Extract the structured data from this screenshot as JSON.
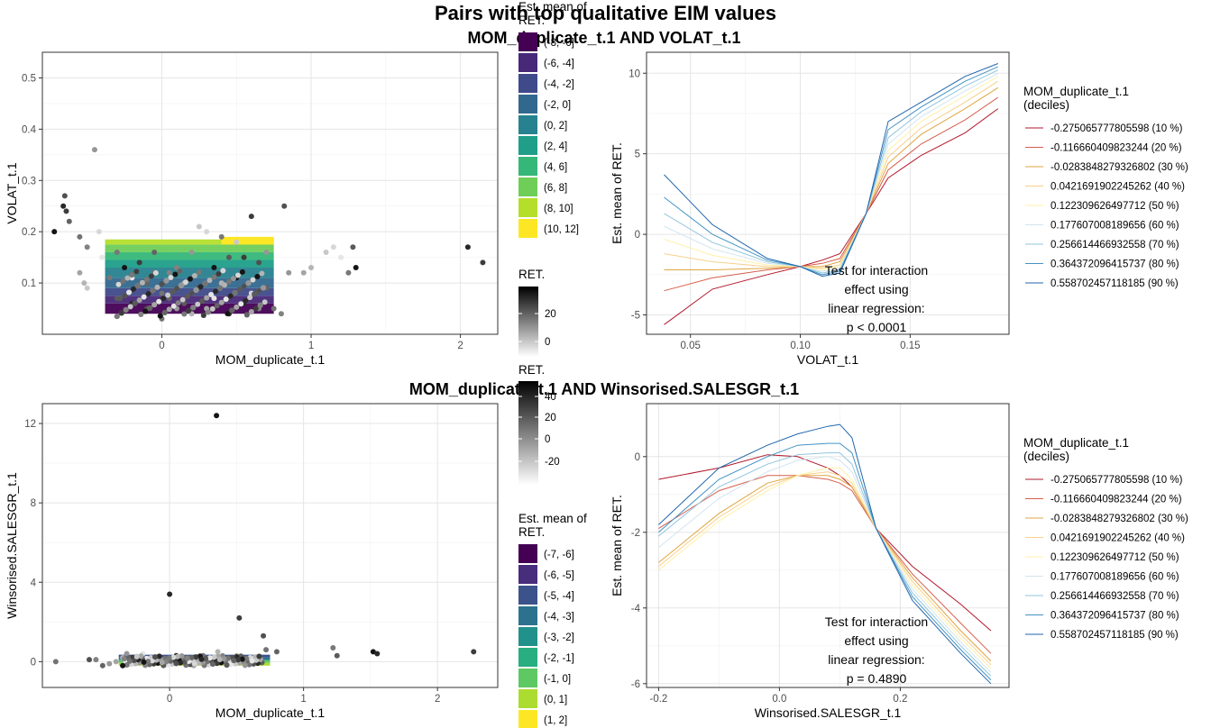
{
  "title": "Pairs with top qualitative EIM values",
  "chart_data": [
    {
      "id": "scatter_top",
      "type": "scatter",
      "title": "MOM_duplicate_t.1 AND VOLAT_t.1",
      "xlabel": "MOM_duplicate_t.1",
      "ylabel": "VOLAT_t.1",
      "xlim": [
        -0.8,
        2.25
      ],
      "ylim": [
        0.0,
        0.55
      ],
      "xticks": [
        0,
        1,
        2
      ],
      "yticks": [
        0.1,
        0.2,
        0.3,
        0.4,
        0.5
      ],
      "ytick_labels": [
        "0.1",
        "0.2",
        "0.3",
        "0.4",
        "0.5"
      ],
      "grid": true,
      "fill_legend": {
        "title": "Est. mean of RET.",
        "items": [
          "(-8, -6]",
          "(-6, -4]",
          "(-4, -2]",
          "(-2, 0]",
          "(0, 2]",
          "(2, 4]",
          "(4, 6]",
          "(6, 8]",
          "(8, 10]",
          "(10, 12]"
        ],
        "colors": [
          "#440154",
          "#482878",
          "#3e4a89",
          "#31688e",
          "#26828e",
          "#1f9e89",
          "#35b779",
          "#6ece58",
          "#b5de2b",
          "#fde725"
        ]
      },
      "color_legend": {
        "title": "RET.",
        "ticks": [
          "20",
          "0"
        ]
      },
      "region_bands": [
        {
          "y": [
            0.04,
            0.06
          ],
          "level": 0
        },
        {
          "y": [
            0.06,
            0.075
          ],
          "level": 1
        },
        {
          "y": [
            0.075,
            0.09
          ],
          "level": 2
        },
        {
          "y": [
            0.09,
            0.11
          ],
          "level": 3
        },
        {
          "y": [
            0.11,
            0.13
          ],
          "level": 4
        },
        {
          "y": [
            0.13,
            0.145
          ],
          "level": 5
        },
        {
          "y": [
            0.145,
            0.16
          ],
          "level": 6
        },
        {
          "y": [
            0.16,
            0.175
          ],
          "level": 7
        },
        {
          "y": [
            0.175,
            0.185
          ],
          "level": 8
        }
      ],
      "region_x": [
        -0.38,
        0.75
      ],
      "points": [
        [
          -0.72,
          0.2
        ],
        [
          -0.66,
          0.25
        ],
        [
          -0.64,
          0.24
        ],
        [
          -0.65,
          0.27
        ],
        [
          -0.62,
          0.22
        ],
        [
          -0.55,
          0.19
        ],
        [
          -0.5,
          0.17
        ],
        [
          -0.45,
          0.36
        ],
        [
          -0.55,
          0.12
        ],
        [
          -0.52,
          0.1
        ],
        [
          -0.5,
          0.09
        ],
        [
          -0.42,
          0.2
        ],
        [
          -0.4,
          0.15
        ],
        [
          -0.35,
          0.11
        ],
        [
          -0.3,
          0.07
        ],
        [
          -0.25,
          0.13
        ],
        [
          -0.2,
          0.06
        ],
        [
          -0.15,
          0.14
        ],
        [
          -0.1,
          0.05
        ],
        [
          -0.05,
          0.16
        ],
        [
          0.0,
          0.08
        ],
        [
          0.05,
          0.12
        ],
        [
          0.1,
          0.05
        ],
        [
          0.15,
          0.1
        ],
        [
          0.2,
          0.04
        ],
        [
          0.25,
          0.21
        ],
        [
          0.3,
          0.2
        ],
        [
          0.35,
          0.07
        ],
        [
          0.4,
          0.19
        ],
        [
          0.45,
          0.15
        ],
        [
          0.5,
          0.11
        ],
        [
          0.55,
          0.06
        ],
        [
          0.6,
          0.23
        ],
        [
          0.65,
          0.14
        ],
        [
          0.7,
          0.09
        ],
        [
          0.75,
          0.05
        ],
        [
          0.8,
          0.04
        ],
        [
          0.85,
          0.12
        ],
        [
          0.95,
          0.12
        ],
        [
          1.0,
          0.13
        ],
        [
          1.1,
          0.16
        ],
        [
          1.15,
          0.17
        ],
        [
          1.2,
          0.15
        ],
        [
          1.25,
          0.12
        ],
        [
          1.28,
          0.17
        ],
        [
          1.3,
          0.13
        ],
        [
          2.05,
          0.17
        ],
        [
          2.15,
          0.14
        ],
        [
          0.82,
          0.25
        ],
        [
          -0.1,
          0.1
        ],
        [
          0.0,
          0.03
        ],
        [
          0.1,
          0.13
        ],
        [
          0.2,
          0.16
        ],
        [
          0.3,
          0.05
        ],
        [
          0.4,
          0.1
        ],
        [
          0.5,
          0.18
        ],
        [
          0.6,
          0.08
        ],
        [
          -0.2,
          0.11
        ],
        [
          -0.3,
          0.16
        ],
        [
          0.15,
          0.06
        ],
        [
          0.35,
          0.13
        ],
        [
          0.45,
          0.04
        ],
        [
          0.55,
          0.15
        ],
        [
          0.25,
          0.09
        ],
        [
          0.05,
          0.07
        ],
        [
          -0.05,
          0.12
        ],
        [
          0.65,
          0.05
        ],
        [
          0.7,
          0.16
        ]
      ]
    },
    {
      "id": "lines_top",
      "type": "line",
      "xlabel": "VOLAT_t.1",
      "ylabel": "Est. mean of RET.",
      "xlim": [
        0.03,
        0.195
      ],
      "ylim": [
        -6.2,
        11.3
      ],
      "xticks": [
        0.05,
        0.1,
        0.15
      ],
      "xtick_labels": [
        "0.05",
        "0.10",
        "0.15"
      ],
      "yticks": [
        -5,
        0,
        5,
        10
      ],
      "grid": true,
      "x": [
        0.038,
        0.06,
        0.085,
        0.1,
        0.11,
        0.118,
        0.13,
        0.14,
        0.155,
        0.175,
        0.19
      ],
      "legend_title": "MOM_duplicate_t.1 (deciles)",
      "series": [
        {
          "name": "-0.275065777805598 (10 %)",
          "color": "#b2182b",
          "values": [
            -5.6,
            -3.4,
            -2.5,
            -2.0,
            -1.6,
            -1.2,
            1.3,
            3.5,
            4.9,
            6.3,
            7.8
          ]
        },
        {
          "name": "-0.116660409823244 (20 %)",
          "color": "#d6604d",
          "values": [
            -3.5,
            -2.7,
            -2.2,
            -2.0,
            -1.8,
            -1.5,
            1.3,
            4.0,
            5.6,
            7.1,
            8.5
          ]
        },
        {
          "name": "-0.0283848279326802 (30 %)",
          "color": "#e0a542",
          "values": [
            -2.2,
            -2.2,
            -2.1,
            -2.0,
            -2.0,
            -1.7,
            1.3,
            4.4,
            6.2,
            7.8,
            9.1
          ]
        },
        {
          "name": "0.0421691902245262 (40 %)",
          "color": "#f7d08a",
          "values": [
            -1.2,
            -1.7,
            -2.0,
            -2.0,
            -2.1,
            -1.9,
            1.3,
            4.8,
            6.6,
            8.2,
            9.5
          ]
        },
        {
          "name": "0.122309626497712 (50 %)",
          "color": "#fff0a8",
          "values": [
            -0.3,
            -1.3,
            -1.9,
            -2.0,
            -2.2,
            -2.0,
            1.3,
            5.2,
            7.0,
            8.6,
            9.8
          ]
        },
        {
          "name": "0.177607008189656 (60 %)",
          "color": "#d1e5f0",
          "values": [
            0.5,
            -0.9,
            -1.8,
            -2.0,
            -2.3,
            -2.1,
            1.3,
            5.6,
            7.3,
            8.9,
            10.0
          ]
        },
        {
          "name": "0.256614466932558 (70 %)",
          "color": "#92c5de",
          "values": [
            1.3,
            -0.5,
            -1.7,
            -2.0,
            -2.4,
            -2.2,
            1.3,
            6.0,
            7.6,
            9.2,
            10.2
          ]
        },
        {
          "name": "0.364372096415737 (80 %)",
          "color": "#4393c3",
          "values": [
            2.3,
            0.0,
            -1.6,
            -2.0,
            -2.5,
            -2.3,
            1.3,
            6.5,
            7.9,
            9.5,
            10.4
          ]
        },
        {
          "name": "0.558702457118185 (90 %)",
          "color": "#2166ac",
          "values": [
            3.7,
            0.6,
            -1.5,
            -2.0,
            -2.6,
            -2.4,
            1.3,
            7.0,
            8.2,
            9.8,
            10.6
          ]
        }
      ],
      "annotation": [
        "Test for interaction",
        "effect using",
        "linear regression:",
        "p < 0.0001"
      ]
    },
    {
      "id": "scatter_bottom",
      "type": "scatter",
      "title": "MOM_duplicate_t.1 AND Winsorised.SALESGR_t.1",
      "xlabel": "MOM_duplicate_t.1",
      "ylabel": "Winsorised.SALESGR_t.1",
      "xlim": [
        -0.95,
        2.45
      ],
      "ylim": [
        -1.3,
        13.0
      ],
      "xticks": [
        0,
        1,
        2
      ],
      "yticks": [
        0,
        4,
        8,
        12
      ],
      "grid": true,
      "fill_legend": {
        "title": "Est. mean of RET.",
        "items": [
          "(-7, -6]",
          "(-6, -5]",
          "(-5, -4]",
          "(-4, -3]",
          "(-3, -2]",
          "(-2, -1]",
          "(-1, 0]",
          "(0, 1]",
          "(1, 2]"
        ],
        "colors": [
          "#440154",
          "#472d7b",
          "#3b528b",
          "#2c728e",
          "#21918c",
          "#28ae80",
          "#5ec962",
          "#addc30",
          "#fde725"
        ]
      },
      "color_legend": {
        "title": "RET.",
        "ticks": [
          "40",
          "20",
          "0",
          "-20"
        ]
      },
      "region_x": [
        -0.38,
        0.75
      ],
      "region_y": [
        -0.2,
        0.35
      ],
      "points": [
        [
          0.35,
          12.4
        ],
        [
          0.0,
          3.4
        ],
        [
          0.52,
          2.2
        ],
        [
          0.7,
          1.3
        ],
        [
          0.8,
          0.5
        ],
        [
          -0.85,
          0.0
        ],
        [
          -0.55,
          0.1
        ],
        [
          -0.45,
          -0.1
        ],
        [
          -0.4,
          0.0
        ],
        [
          -0.35,
          0.2
        ],
        [
          -0.3,
          -0.1
        ],
        [
          -0.25,
          0.1
        ],
        [
          -0.2,
          0.4
        ],
        [
          -0.15,
          0.0
        ],
        [
          -0.1,
          0.2
        ],
        [
          -0.05,
          -0.1
        ],
        [
          0.05,
          0.3
        ],
        [
          0.1,
          0.0
        ],
        [
          0.15,
          0.2
        ],
        [
          0.2,
          0.1
        ],
        [
          0.25,
          0.3
        ],
        [
          0.3,
          -0.1
        ],
        [
          0.4,
          0.2
        ],
        [
          0.45,
          0.0
        ],
        [
          0.5,
          0.3
        ],
        [
          0.55,
          0.1
        ],
        [
          0.6,
          0.2
        ],
        [
          0.65,
          0.0
        ],
        [
          1.22,
          0.7
        ],
        [
          1.25,
          0.3
        ],
        [
          1.52,
          0.5
        ],
        [
          1.55,
          0.4
        ],
        [
          2.27,
          0.5
        ],
        [
          -0.6,
          0.1
        ],
        [
          -0.5,
          -0.2
        ],
        [
          0.72,
          0.6
        ],
        [
          0.0,
          0.1
        ],
        [
          -0.32,
          0.4
        ],
        [
          0.18,
          -0.2
        ],
        [
          0.36,
          0.5
        ]
      ]
    },
    {
      "id": "lines_bottom",
      "type": "line",
      "xlabel": "Winsorised.SALESGR_t.1",
      "ylabel": "Est. mean of RET.",
      "xlim": [
        -0.22,
        0.38
      ],
      "ylim": [
        -6.1,
        1.4
      ],
      "xticks": [
        -0.2,
        0.0,
        0.2
      ],
      "xtick_labels": [
        "-0.2",
        "0.0",
        "0.2"
      ],
      "yticks": [
        -6,
        -4,
        -2,
        0
      ],
      "grid": true,
      "x": [
        -0.2,
        -0.1,
        -0.02,
        0.03,
        0.08,
        0.1,
        0.12,
        0.16,
        0.22,
        0.3,
        0.35
      ],
      "legend_title": "MOM_duplicate_t.1 (deciles)",
      "series": [
        {
          "name": "-0.275065777805598 (10 %)",
          "color": "#b2182b",
          "values": [
            -0.6,
            -0.3,
            0.05,
            0.0,
            -0.3,
            -0.5,
            -0.8,
            -1.9,
            -2.9,
            -3.9,
            -4.6
          ]
        },
        {
          "name": "-0.116660409823244 (20 %)",
          "color": "#d6604d",
          "values": [
            -1.9,
            -0.9,
            -0.5,
            -0.5,
            -0.6,
            -0.7,
            -0.9,
            -1.9,
            -3.1,
            -4.4,
            -5.2
          ]
        },
        {
          "name": "-0.0283848279326802 (30 %)",
          "color": "#e0a542",
          "values": [
            -2.8,
            -1.5,
            -0.7,
            -0.5,
            -0.5,
            -0.6,
            -0.8,
            -1.9,
            -3.2,
            -4.6,
            -5.4
          ]
        },
        {
          "name": "0.0421691902245262 (40 %)",
          "color": "#f7d08a",
          "values": [
            -2.9,
            -1.6,
            -0.8,
            -0.5,
            -0.4,
            -0.5,
            -0.7,
            -1.9,
            -3.3,
            -4.7,
            -5.5
          ]
        },
        {
          "name": "0.122309626497712 (50 %)",
          "color": "#fff0a8",
          "values": [
            -3.0,
            -1.7,
            -0.9,
            -0.5,
            -0.3,
            -0.3,
            -0.6,
            -1.9,
            -3.4,
            -4.8,
            -5.6
          ]
        },
        {
          "name": "0.177607008189656 (60 %)",
          "color": "#d1e5f0",
          "values": [
            -2.4,
            -1.1,
            -0.4,
            -0.1,
            0.0,
            -0.1,
            -0.4,
            -1.9,
            -3.5,
            -4.9,
            -5.7
          ]
        },
        {
          "name": "0.256614466932558 (70 %)",
          "color": "#92c5de",
          "values": [
            -2.1,
            -0.8,
            -0.2,
            0.05,
            0.1,
            0.1,
            -0.2,
            -1.9,
            -3.6,
            -5.0,
            -5.8
          ]
        },
        {
          "name": "0.364372096415737 (80 %)",
          "color": "#4393c3",
          "values": [
            -2.0,
            -0.6,
            0.0,
            0.3,
            0.35,
            0.35,
            0.1,
            -1.9,
            -3.7,
            -5.1,
            -5.9
          ]
        },
        {
          "name": "0.558702457118185 (90 %)",
          "color": "#2166ac",
          "values": [
            -1.8,
            -0.3,
            0.3,
            0.6,
            0.8,
            0.85,
            0.5,
            -1.9,
            -3.8,
            -5.2,
            -6.0
          ]
        }
      ],
      "annotation": [
        "Test for interaction",
        "effect using",
        "linear regression:",
        "p = 0.4890"
      ]
    }
  ]
}
